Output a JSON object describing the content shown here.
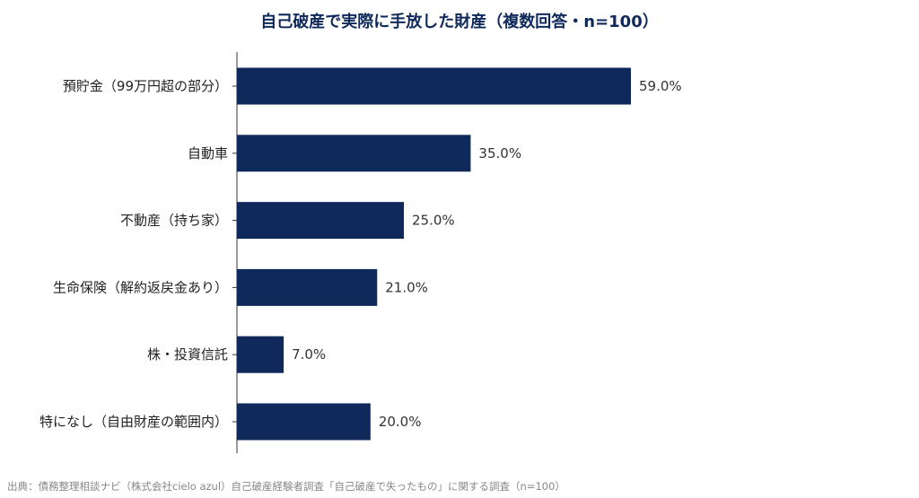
{
  "chart_data": {
    "type": "bar",
    "orientation": "horizontal",
    "title": "自己破産で実際に手放した財産（複数回答・n=100）",
    "categories": [
      "預貯金（99万円超の部分）",
      "自動車",
      "不動産（持ち家）",
      "生命保険（解約返戻金あり）",
      "株・投資信託",
      "特になし（自由財産の範囲内）"
    ],
    "values": [
      59.0,
      35.0,
      25.0,
      21.0,
      7.0,
      20.0
    ],
    "value_labels": [
      "59.0%",
      "35.0%",
      "25.0%",
      "21.0%",
      "7.0%",
      "20.0%"
    ],
    "unit": "%",
    "xlim": [
      0,
      100
    ],
    "grid": false,
    "legend": "none",
    "source": "出典：債務整理相談ナビ（株式会社cielo azul）自己破産経験者調査「自己破産で失ったもの」に関する調査（n=100）"
  },
  "colors": {
    "bar": "#0f2a5a",
    "title": "#0f2a5a",
    "label": "#222222",
    "value_label": "#333333",
    "axis": "#333333",
    "source": "#888888"
  }
}
